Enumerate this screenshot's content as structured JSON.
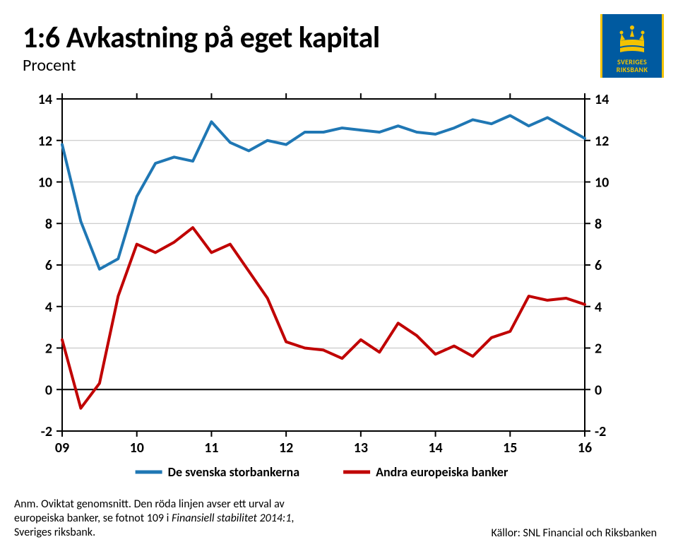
{
  "title": "1:6 Avkastning på eget kapital",
  "subtitle": "Procent",
  "logo": {
    "line1": "SVERIGES",
    "line2": "RIKSBANK",
    "bg": "#005aa0",
    "accent": "#f3c300"
  },
  "chart": {
    "type": "line",
    "background_color": "#ffffff",
    "grid_color": "#bfbfbf",
    "axis_color": "#000000",
    "axis_width": 2,
    "grid_width": 1,
    "line_width": 4,
    "font_size_axis": 20,
    "font_weight_axis": "700",
    "font_size_legend": 18,
    "x_labels": [
      "09",
      "10",
      "11",
      "12",
      "13",
      "14",
      "15",
      "16"
    ],
    "x_positions": [
      0,
      1,
      2,
      3,
      4,
      5,
      6,
      7
    ],
    "x_domain": [
      0,
      7
    ],
    "y_ticks": [
      -2,
      0,
      2,
      4,
      6,
      8,
      10,
      12,
      14
    ],
    "y_domain": [
      -2,
      14
    ],
    "series": [
      {
        "name": "De svenska storbankerna",
        "color": "#1f77b4",
        "x": [
          0.0,
          0.25,
          0.5,
          0.75,
          1.0,
          1.25,
          1.5,
          1.75,
          2.0,
          2.25,
          2.5,
          2.75,
          3.0,
          3.25,
          3.5,
          3.75,
          4.0,
          4.25,
          4.5,
          4.75,
          5.0,
          5.25,
          5.5,
          5.75,
          6.0,
          6.25,
          6.5,
          6.75,
          7.0
        ],
        "y": [
          11.8,
          8.1,
          5.8,
          6.3,
          9.3,
          10.9,
          11.2,
          11.0,
          12.9,
          11.9,
          11.5,
          12.0,
          11.8,
          12.4,
          12.4,
          12.6,
          12.5,
          12.4,
          12.7,
          12.4,
          12.3,
          12.6,
          13.0,
          12.8,
          13.2,
          12.7,
          13.1,
          12.6,
          12.1
        ]
      },
      {
        "name": "Andra europeiska banker",
        "color": "#c00000",
        "x": [
          0.0,
          0.25,
          0.5,
          0.75,
          1.0,
          1.25,
          1.5,
          1.75,
          2.0,
          2.25,
          2.5,
          2.75,
          3.0,
          3.25,
          3.5,
          3.75,
          4.0,
          4.25,
          4.5,
          4.75,
          5.0,
          5.25,
          5.5,
          5.75,
          6.0,
          6.25,
          6.5,
          6.75,
          7.0
        ],
        "y": [
          2.4,
          -0.9,
          0.3,
          4.5,
          7.0,
          6.6,
          7.1,
          7.8,
          6.6,
          7.0,
          5.7,
          4.4,
          2.3,
          2.0,
          1.9,
          1.5,
          2.4,
          1.8,
          3.2,
          2.6,
          1.7,
          2.1,
          1.6,
          2.5,
          2.8,
          4.5,
          4.3,
          4.4,
          4.1
        ]
      }
    ],
    "legend": {
      "items": [
        {
          "label": "De svenska storbankerna",
          "color": "#1f77b4"
        },
        {
          "label": "Andra europeiska banker",
          "color": "#c00000"
        }
      ]
    }
  },
  "note_prefix": "Anm. Oviktat genomsnitt. Den röda linjen avser ett urval av europeiska banker, se fotnot 109 i ",
  "note_italic": "Finansiell stabilitet 2014:1",
  "note_suffix": ", Sveriges riksbank.",
  "source": "Källor: SNL Financial och Riksbanken"
}
